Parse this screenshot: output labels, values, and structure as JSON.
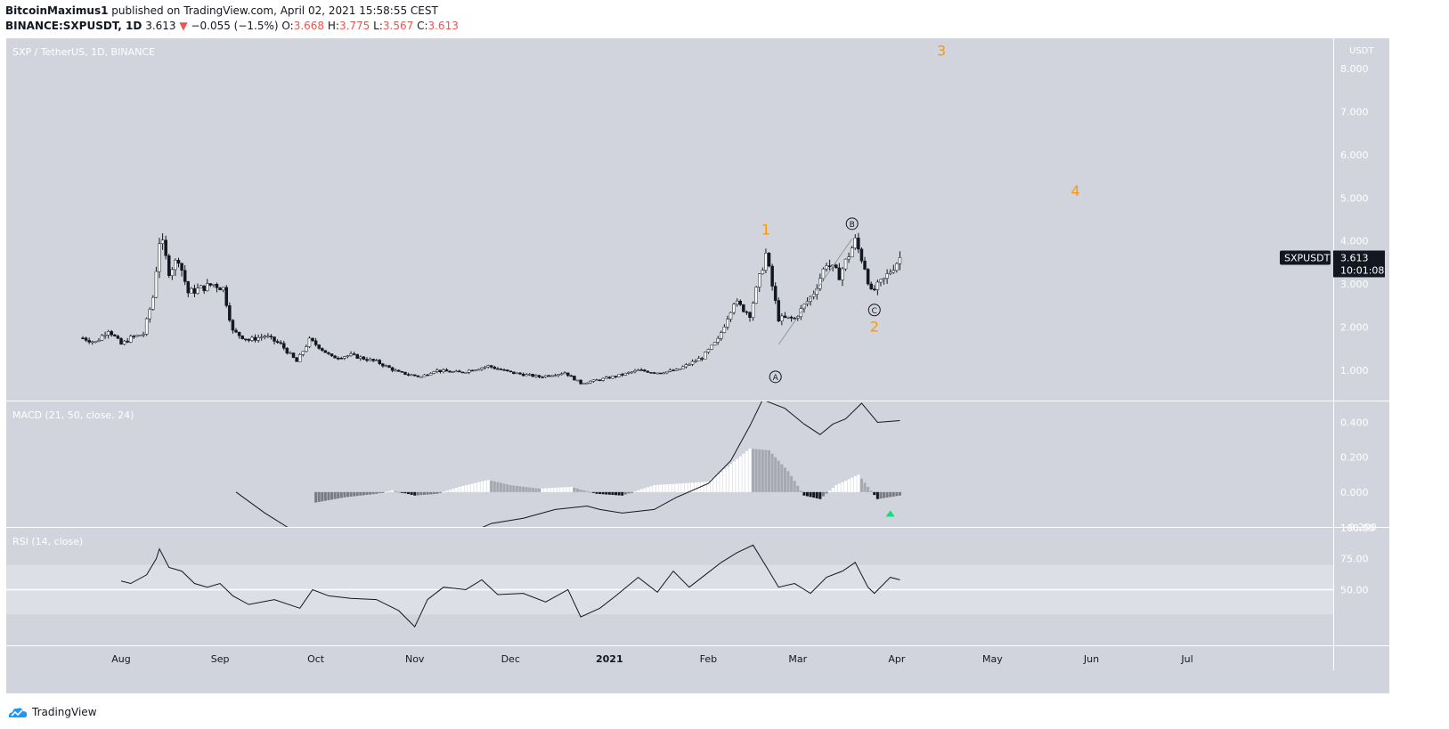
{
  "header": {
    "author": "BitcoinMaximus1",
    "published_text": "published on TradingView.com, April 02, 2021 15:58:55 CEST",
    "symbol": "BINANCE:SXPUSDT, 1D",
    "last": "3.613",
    "change": "−0.055 (−1.5%)",
    "o_label": "O:",
    "o": "3.668",
    "h_label": "H:",
    "h": "3.775",
    "l_label": "L:",
    "l": "3.567",
    "c_label": "C:",
    "c": "3.613"
  },
  "footer": {
    "brand": "TradingView"
  },
  "colors": {
    "up": "#ffffff",
    "down": "#131722",
    "wave": "#ff9800",
    "panel_bg": "#d1d4dc",
    "rsi_band": "#dcdfe6",
    "signal_arrow": "#00e676"
  },
  "chart_data": {
    "type": "candlestick",
    "title": "SXP / TetherUS, 1D, BINANCE",
    "y_unit": "USDT",
    "ylim": [
      0.3,
      8.7
    ],
    "y_ticks": [
      "8.000",
      "7.000",
      "6.000",
      "5.000",
      "4.000",
      "3.000",
      "2.000",
      "1.000"
    ],
    "x_ticks": [
      "Aug",
      "Sep",
      "Oct",
      "Nov",
      "Dec",
      "2021",
      "Feb",
      "Mar",
      "Apr",
      "May",
      "Jun",
      "Jul"
    ],
    "price_label": {
      "symbol": "SXPUSDT",
      "value": "3.613",
      "countdown": "10:01:08"
    },
    "close_path": [
      [
        "2020-07-20",
        1.75
      ],
      [
        "2020-07-24",
        1.65
      ],
      [
        "2020-07-28",
        1.95
      ],
      [
        "2020-08-01",
        1.6
      ],
      [
        "2020-08-04",
        1.75
      ],
      [
        "2020-08-08",
        1.85
      ],
      [
        "2020-08-11",
        2.7
      ],
      [
        "2020-08-13",
        4.0
      ],
      [
        "2020-08-14",
        3.9
      ],
      [
        "2020-08-16",
        3.3
      ],
      [
        "2020-08-19",
        3.6
      ],
      [
        "2020-08-22",
        2.8
      ],
      [
        "2020-08-26",
        2.9
      ],
      [
        "2020-08-30",
        3.0
      ],
      [
        "2020-09-02",
        2.9
      ],
      [
        "2020-09-05",
        1.9
      ],
      [
        "2020-09-10",
        1.7
      ],
      [
        "2020-09-15",
        1.8
      ],
      [
        "2020-09-20",
        1.6
      ],
      [
        "2020-09-25",
        1.2
      ],
      [
        "2020-09-29",
        1.7
      ],
      [
        "2020-10-02",
        1.55
      ],
      [
        "2020-10-06",
        1.3
      ],
      [
        "2020-10-12",
        1.35
      ],
      [
        "2020-10-20",
        1.2
      ],
      [
        "2020-10-27",
        0.95
      ],
      [
        "2020-11-03",
        0.85
      ],
      [
        "2020-11-07",
        1.0
      ],
      [
        "2020-11-15",
        0.95
      ],
      [
        "2020-11-24",
        1.1
      ],
      [
        "2020-12-01",
        0.95
      ],
      [
        "2020-12-10",
        0.85
      ],
      [
        "2020-12-18",
        0.95
      ],
      [
        "2020-12-23",
        0.7
      ],
      [
        "2020-12-30",
        0.8
      ],
      [
        "2021-01-05",
        0.9
      ],
      [
        "2021-01-10",
        1.0
      ],
      [
        "2021-01-16",
        0.95
      ],
      [
        "2021-01-22",
        1.0
      ],
      [
        "2021-01-30",
        1.3
      ],
      [
        "2021-02-04",
        1.7
      ],
      [
        "2021-02-09",
        2.6
      ],
      [
        "2021-02-14",
        2.3
      ],
      [
        "2021-02-19",
        3.7
      ],
      [
        "2021-02-23",
        2.2
      ],
      [
        "2021-02-28",
        2.2
      ],
      [
        "2021-03-06",
        2.8
      ],
      [
        "2021-03-10",
        3.5
      ],
      [
        "2021-03-14",
        3.2
      ],
      [
        "2021-03-19",
        4.0
      ],
      [
        "2021-03-22",
        3.4
      ],
      [
        "2021-03-24",
        2.8
      ],
      [
        "2021-03-28",
        3.1
      ],
      [
        "2021-04-02",
        3.613
      ]
    ],
    "wave_labels": [
      {
        "text": "1",
        "date": "2021-02-19",
        "price": 4.25,
        "style": "plain"
      },
      {
        "text": "A",
        "date": "2021-02-22",
        "price": 0.85,
        "style": "circle"
      },
      {
        "text": "B",
        "date": "2021-03-18",
        "price": 4.4,
        "style": "circle"
      },
      {
        "text": "C",
        "date": "2021-03-25",
        "price": 2.4,
        "style": "circle"
      },
      {
        "text": "2",
        "date": "2021-03-25",
        "price": 2.0,
        "style": "plain"
      },
      {
        "text": "3",
        "date": "2021-04-15",
        "price": 8.4,
        "style": "plain"
      },
      {
        "text": "4",
        "date": "2021-05-27",
        "price": 5.15,
        "style": "plain"
      }
    ],
    "macd": {
      "title": "MACD (21, 50, close, 24)",
      "ylim": [
        -0.2,
        0.52
      ],
      "y_ticks": [
        "0.400",
        "0.200",
        "0.000",
        "−0.200"
      ],
      "macd_line": [
        [
          "2020-09-06",
          0.0
        ],
        [
          "2020-09-15",
          -0.12
        ],
        [
          "2020-09-22",
          -0.2
        ],
        [
          "2020-10-01",
          -0.3
        ],
        [
          "2020-11-20",
          -0.22
        ],
        [
          "2020-11-25",
          -0.18
        ],
        [
          "2020-12-05",
          -0.15
        ],
        [
          "2020-12-15",
          -0.1
        ],
        [
          "2020-12-25",
          -0.08
        ],
        [
          "2020-12-29",
          -0.1
        ],
        [
          "2021-01-05",
          -0.12
        ],
        [
          "2021-01-15",
          -0.1
        ],
        [
          "2021-01-22",
          -0.03
        ],
        [
          "2021-02-01",
          0.05
        ],
        [
          "2021-02-08",
          0.18
        ],
        [
          "2021-02-14",
          0.38
        ],
        [
          "2021-02-18",
          0.53
        ],
        [
          "2021-02-25",
          0.48
        ],
        [
          "2021-03-03",
          0.39
        ],
        [
          "2021-03-08",
          0.33
        ],
        [
          "2021-03-12",
          0.39
        ],
        [
          "2021-03-16",
          0.42
        ],
        [
          "2021-03-21",
          0.51
        ],
        [
          "2021-03-26",
          0.4
        ],
        [
          "2021-04-02",
          0.41
        ]
      ],
      "histogram": [
        [
          "2020-10-01",
          -0.06
        ],
        [
          "2020-10-10",
          -0.03
        ],
        [
          "2020-10-20",
          -0.01
        ],
        [
          "2020-10-25",
          0.01
        ],
        [
          "2020-11-01",
          -0.02
        ],
        [
          "2020-11-08",
          -0.01
        ],
        [
          "2020-11-15",
          0.03
        ],
        [
          "2020-11-24",
          0.07
        ],
        [
          "2020-12-01",
          0.04
        ],
        [
          "2020-12-10",
          0.02
        ],
        [
          "2020-12-20",
          0.03
        ],
        [
          "2020-12-28",
          -0.01
        ],
        [
          "2021-01-05",
          -0.02
        ],
        [
          "2021-01-15",
          0.04
        ],
        [
          "2021-01-24",
          0.05
        ],
        [
          "2021-02-01",
          0.06
        ],
        [
          "2021-02-08",
          0.16
        ],
        [
          "2021-02-14",
          0.25
        ],
        [
          "2021-02-20",
          0.24
        ],
        [
          "2021-02-26",
          0.12
        ],
        [
          "2021-03-03",
          -0.02
        ],
        [
          "2021-03-08",
          -0.04
        ],
        [
          "2021-03-13",
          0.04
        ],
        [
          "2021-03-20",
          0.1
        ],
        [
          "2021-03-26",
          -0.04
        ],
        [
          "2021-04-02",
          -0.02
        ]
      ],
      "signal_arrow_date": "2021-03-30"
    },
    "rsi": {
      "title": "RSI (14, close)",
      "ylim": [
        5,
        100
      ],
      "y_ticks": [
        "100.00",
        "75.00",
        "50.00"
      ],
      "band": [
        30,
        70
      ],
      "rsi_line": [
        [
          "2020-08-01",
          57
        ],
        [
          "2020-08-04",
          55
        ],
        [
          "2020-08-09",
          62
        ],
        [
          "2020-08-12",
          75
        ],
        [
          "2020-08-13",
          83
        ],
        [
          "2020-08-16",
          68
        ],
        [
          "2020-08-20",
          65
        ],
        [
          "2020-08-24",
          55
        ],
        [
          "2020-08-28",
          52
        ],
        [
          "2020-09-01",
          55
        ],
        [
          "2020-09-05",
          45
        ],
        [
          "2020-09-10",
          38
        ],
        [
          "2020-09-18",
          42
        ],
        [
          "2020-09-26",
          35
        ],
        [
          "2020-09-30",
          50
        ],
        [
          "2020-10-05",
          45
        ],
        [
          "2020-10-12",
          43
        ],
        [
          "2020-10-20",
          42
        ],
        [
          "2020-10-27",
          33
        ],
        [
          "2020-11-01",
          20
        ],
        [
          "2020-11-05",
          42
        ],
        [
          "2020-11-10",
          52
        ],
        [
          "2020-11-17",
          50
        ],
        [
          "2020-11-22",
          58
        ],
        [
          "2020-11-27",
          46
        ],
        [
          "2020-12-05",
          47
        ],
        [
          "2020-12-12",
          40
        ],
        [
          "2020-12-19",
          50
        ],
        [
          "2020-12-23",
          28
        ],
        [
          "2020-12-29",
          35
        ],
        [
          "2021-01-03",
          45
        ],
        [
          "2021-01-10",
          60
        ],
        [
          "2021-01-16",
          48
        ],
        [
          "2021-01-21",
          65
        ],
        [
          "2021-01-26",
          52
        ],
        [
          "2021-01-31",
          62
        ],
        [
          "2021-02-05",
          72
        ],
        [
          "2021-02-10",
          80
        ],
        [
          "2021-02-15",
          86
        ],
        [
          "2021-02-20",
          65
        ],
        [
          "2021-02-23",
          52
        ],
        [
          "2021-02-28",
          55
        ],
        [
          "2021-03-05",
          47
        ],
        [
          "2021-03-10",
          60
        ],
        [
          "2021-03-15",
          65
        ],
        [
          "2021-03-19",
          72
        ],
        [
          "2021-03-23",
          52
        ],
        [
          "2021-03-25",
          47
        ],
        [
          "2021-03-30",
          60
        ],
        [
          "2021-04-02",
          58
        ]
      ]
    }
  }
}
